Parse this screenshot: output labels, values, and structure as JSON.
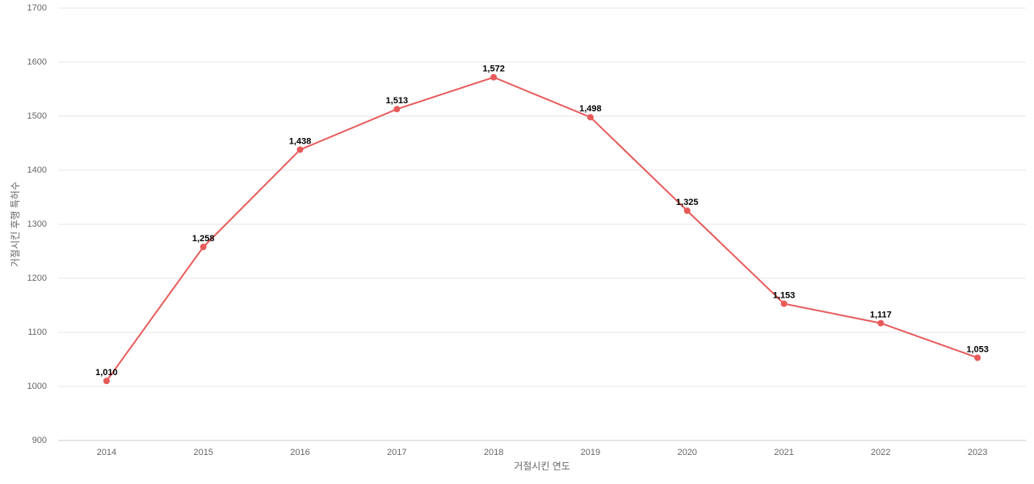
{
  "chart_data": {
    "type": "line",
    "x_label": "거절시킨 연도",
    "y_label": "거절시킨 후행 특허수",
    "categories": [
      "2014",
      "2015",
      "2016",
      "2017",
      "2018",
      "2019",
      "2020",
      "2021",
      "2022",
      "2023"
    ],
    "values": [
      1010,
      1258,
      1438,
      1513,
      1572,
      1498,
      1325,
      1153,
      1117,
      1053
    ],
    "value_labels": [
      "1,010",
      "1,258",
      "1,438",
      "1,513",
      "1,572",
      "1,498",
      "1,325",
      "1,153",
      "1,117",
      "1,053"
    ],
    "color": "#e85a5a",
    "ylim": [
      900,
      1700
    ],
    "yticks": [
      900,
      1000,
      1100,
      1200,
      1300,
      1400,
      1500,
      1600,
      1700
    ],
    "grid": true
  }
}
